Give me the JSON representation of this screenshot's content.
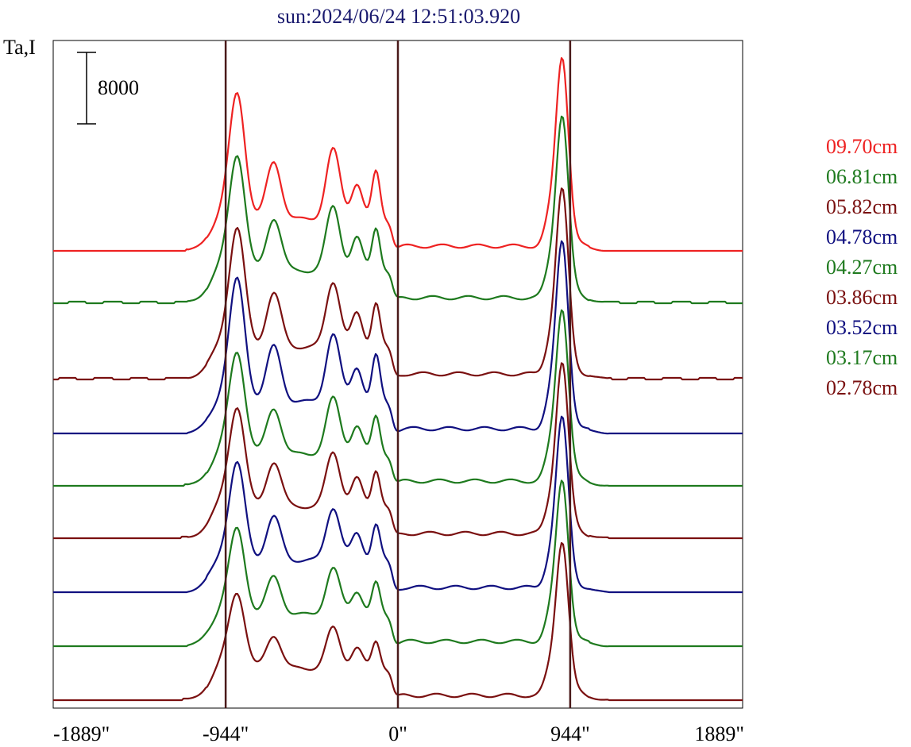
{
  "chart_data": {
    "type": "line",
    "title": "sun:2024/06/24 12:51:03.920",
    "ylabel": "Ta,I",
    "scale_bar_label": "8000",
    "xlim": [
      -1889,
      1889
    ],
    "x_ticks": [
      {
        "value": -1889,
        "label": "-1889\""
      },
      {
        "value": -944,
        "label": "-944\""
      },
      {
        "value": 0,
        "label": "0\""
      },
      {
        "value": 944,
        "label": "944\""
      },
      {
        "value": 1889,
        "label": "1889\""
      }
    ],
    "vertical_markers": [
      -944,
      0,
      944
    ],
    "marker_color": "#4a1a1a",
    "series": [
      {
        "name": "09.70cm",
        "color": "#ee2222",
        "baseline": 316,
        "amp": 1.0,
        "noise_seed": 1
      },
      {
        "name": "06.81cm",
        "color": "#1e7a1e",
        "baseline": 381,
        "amp": 0.92,
        "noise_seed": 2
      },
      {
        "name": "05.82cm",
        "color": "#7a1010",
        "baseline": 477,
        "amp": 0.94,
        "noise_seed": 3
      },
      {
        "name": "04.78cm",
        "color": "#101080",
        "baseline": 546,
        "amp": 0.97,
        "noise_seed": 4
      },
      {
        "name": "04.27cm",
        "color": "#1e7a1e",
        "baseline": 612,
        "amp": 0.8,
        "noise_seed": 5
      },
      {
        "name": "03.86cm",
        "color": "#7a1010",
        "baseline": 678,
        "amp": 0.78,
        "noise_seed": 6
      },
      {
        "name": "03.52cm",
        "color": "#101080",
        "baseline": 746,
        "amp": 0.76,
        "noise_seed": 7
      },
      {
        "name": "03.17cm",
        "color": "#1e7a1e",
        "baseline": 814,
        "amp": 0.66,
        "noise_seed": 8
      },
      {
        "name": "02.78cm",
        "color": "#7a1010",
        "baseline": 882,
        "amp": 0.58,
        "noise_seed": 9
      }
    ]
  }
}
